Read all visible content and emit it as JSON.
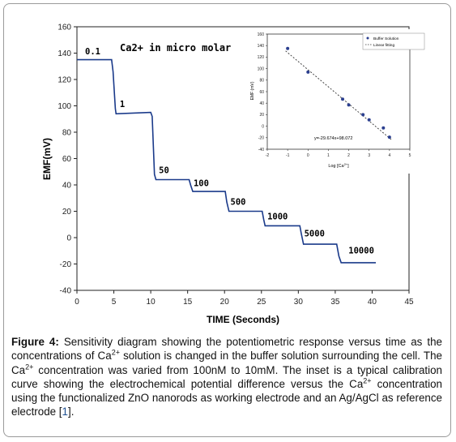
{
  "figure": {
    "caption": {
      "label": "Figure 4:",
      "parts": [
        " Sensitivity diagram showing the potentiometric response versus time as the concentrations of Ca",
        "2+",
        " solution is changed in the buffer solution surrounding the cell. The Ca",
        "2+",
        " concentration was varied from 100nM to 10mM. The inset is a typical calibration curve showing the electrochemical potential difference versus the Ca",
        "2+",
        " concentration using the functionalized ZnO nanorods as working electrode and an Ag/AgCl as reference electrode [",
        "1",
        "]."
      ]
    }
  },
  "chart_data": [
    {
      "type": "line",
      "xlabel": "TIME (Seconds)",
      "ylabel": "EMF(mV)",
      "xlim": [
        0,
        45
      ],
      "ylim": [
        -40,
        160
      ],
      "xticks": [
        0,
        5,
        10,
        15,
        20,
        25,
        30,
        35,
        40,
        45
      ],
      "yticks": [
        -40,
        -20,
        0,
        20,
        40,
        60,
        80,
        100,
        120,
        140,
        160
      ],
      "line_color": "#1a3a8a",
      "annotation": "Ca2+ in micro molar",
      "series": [
        {
          "x": [
            0,
            4.7,
            4.9,
            5.2,
            5.3,
            10.0,
            10.2,
            10.5,
            10.7,
            15.2,
            15.4,
            15.7,
            20.1,
            20.3,
            20.6,
            25.1,
            25.3,
            25.5,
            30.2,
            30.4,
            30.7,
            35.2,
            35.5,
            35.8,
            40.5
          ],
          "y": [
            135,
            135,
            126,
            98,
            94,
            95,
            92,
            48,
            44,
            44,
            40,
            35,
            35,
            27,
            20,
            20,
            14,
            9,
            9,
            3,
            -5,
            -5,
            -14,
            -19,
            -19
          ]
        }
      ],
      "level_labels": [
        {
          "text": "0.1",
          "x": 1.1,
          "y": 139
        },
        {
          "text": "1",
          "x": 5.8,
          "y": 99
        },
        {
          "text": "50",
          "x": 11.1,
          "y": 49
        },
        {
          "text": "100",
          "x": 15.8,
          "y": 39
        },
        {
          "text": "500",
          "x": 20.8,
          "y": 25
        },
        {
          "text": "1000",
          "x": 25.8,
          "y": 14
        },
        {
          "text": "5000",
          "x": 30.8,
          "y": 1
        },
        {
          "text": "10000",
          "x": 36.8,
          "y": -12
        }
      ]
    },
    {
      "type": "scatter",
      "xlabel": "Log [Ca",
      "xlabel_sup": "2+",
      "xlabel_end": "]",
      "ylabel": "EMF (mV)",
      "xlim": [
        -2,
        5
      ],
      "ylim": [
        -40,
        160
      ],
      "xticks": [
        -2,
        -1,
        0,
        1,
        2,
        3,
        4,
        5
      ],
      "yticks": [
        -40,
        -20,
        0,
        20,
        40,
        60,
        80,
        100,
        120,
        140,
        160
      ],
      "legend": [
        "Buffer Solution",
        "Linear fitting"
      ],
      "legend_position": "top-right",
      "equation": "y=-29.674x+98.072",
      "point_color": "#2b3f8f",
      "points": {
        "x": [
          -1,
          0,
          1.7,
          2,
          2.7,
          3,
          3.7,
          4
        ],
        "y": [
          135,
          94,
          47,
          37,
          20,
          11,
          -3,
          -19
        ]
      },
      "fit": {
        "slope": -29.674,
        "intercept": 98.072,
        "x_range": [
          -1.1,
          4.1
        ]
      }
    }
  ]
}
